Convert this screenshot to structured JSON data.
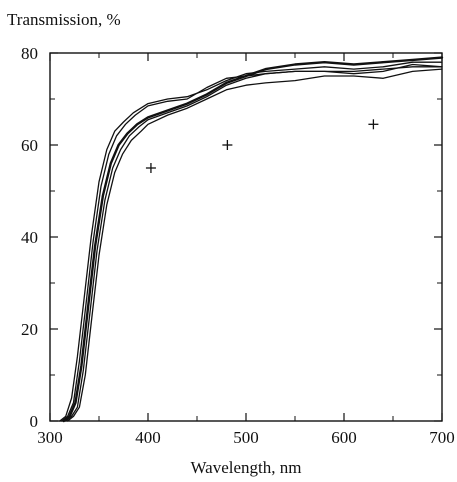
{
  "chart_data": {
    "type": "line",
    "title": "",
    "xlabel": "Wavelength, nm",
    "ylabel": "Transmission, %",
    "xlim": [
      300,
      700
    ],
    "ylim": [
      0,
      80
    ],
    "xticks": [
      300,
      400,
      500,
      600,
      700
    ],
    "yticks": [
      0,
      20,
      40,
      60,
      80
    ],
    "grid": false,
    "legend": "none",
    "line_color": "#111111",
    "series": [
      {
        "x": [
          310,
          316,
          322,
          328,
          335,
          342,
          350,
          358,
          366,
          375,
          385,
          400,
          420,
          440,
          460,
          480,
          500,
          520,
          550,
          580,
          610,
          640,
          670,
          700
        ],
        "y": [
          0,
          1,
          5,
          14,
          27,
          40,
          52,
          59,
          63,
          65,
          67,
          69,
          70,
          70.5,
          72,
          74,
          75.5,
          76,
          76.5,
          77,
          76.5,
          77,
          78,
          78
        ]
      },
      {
        "x": [
          312,
          318,
          324,
          330,
          337,
          344,
          352,
          360,
          368,
          377,
          387,
          400,
          420,
          440,
          460,
          480,
          500,
          520,
          550,
          580,
          610,
          640,
          670,
          700
        ],
        "y": [
          0,
          1,
          4,
          13,
          26,
          39,
          51,
          58,
          62,
          64.5,
          66.5,
          68.5,
          69.5,
          70,
          72.5,
          74.5,
          75,
          75.5,
          76,
          76,
          76,
          76.5,
          77,
          77
        ]
      },
      {
        "x": [
          314,
          320,
          326,
          332,
          339,
          346,
          354,
          362,
          370,
          379,
          389,
          400,
          420,
          440,
          460,
          480,
          500,
          520,
          550,
          580,
          610,
          640,
          670,
          700
        ],
        "y": [
          0,
          1,
          4,
          12,
          25,
          38,
          49,
          56,
          60,
          62.5,
          64.5,
          66,
          67.5,
          69,
          71,
          73.5,
          75,
          76.5,
          77.5,
          78,
          77.5,
          78,
          78.5,
          79
        ]
      },
      {
        "x": [
          316,
          322,
          328,
          334,
          341,
          348,
          356,
          364,
          372,
          381,
          391,
          400,
          420,
          440,
          460,
          480,
          500,
          520,
          550,
          580,
          610,
          640,
          670,
          700
        ],
        "y": [
          0,
          1,
          3,
          11,
          24,
          37,
          48,
          55,
          59,
          62,
          64,
          65.5,
          67,
          68.5,
          70.5,
          73,
          74.5,
          75.5,
          76,
          76,
          75.5,
          76,
          77.5,
          77
        ]
      },
      {
        "x": [
          318,
          324,
          330,
          336,
          343,
          350,
          358,
          366,
          374,
          383,
          393,
          400,
          420,
          440,
          460,
          480,
          500,
          520,
          550,
          580,
          610,
          640,
          670,
          700
        ],
        "y": [
          0,
          1,
          3,
          10,
          23,
          36,
          47,
          54,
          58,
          61,
          63,
          64.5,
          66.5,
          68,
          70,
          72,
          73,
          73.5,
          74,
          75,
          75,
          74.5,
          76,
          76.5
        ]
      }
    ],
    "markers": [
      {
        "x": 403,
        "y": 55
      },
      {
        "x": 481,
        "y": 60
      },
      {
        "x": 630,
        "y": 64.5
      }
    ]
  }
}
